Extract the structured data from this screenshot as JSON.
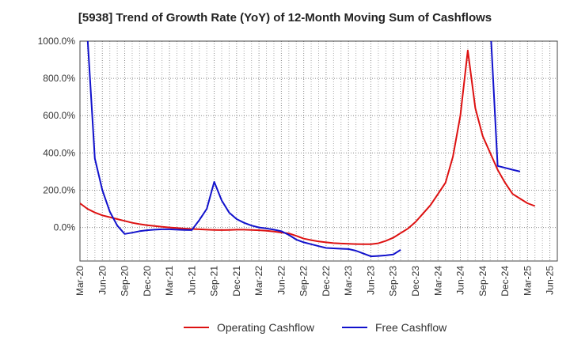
{
  "chart_data": {
    "type": "line",
    "title": "[5938]  Trend of Growth Rate (YoY) of 12-Month Moving Sum of Cashflows",
    "xlabel": "",
    "ylabel": "",
    "ylim": [
      -180,
      1000
    ],
    "yticks": [
      0,
      200,
      400,
      600,
      800,
      1000
    ],
    "ytick_labels": [
      "0.0%",
      "200.0%",
      "400.0%",
      "600.0%",
      "800.0%",
      "1000.0%"
    ],
    "xticks": [
      "Mar-20",
      "Jun-20",
      "Sep-20",
      "Dec-20",
      "Mar-21",
      "Jun-21",
      "Sep-21",
      "Dec-21",
      "Mar-22",
      "Jun-22",
      "Sep-22",
      "Dec-22",
      "Mar-23",
      "Jun-23",
      "Sep-23",
      "Dec-23",
      "Mar-24",
      "Jun-24",
      "Sep-24",
      "Dec-24",
      "Mar-25",
      "Jun-25"
    ],
    "x_start": "Mar-20",
    "x_months": 64,
    "grid": true,
    "legend_position": "bottom-center",
    "series": [
      {
        "name": "Operating Cashflow",
        "color": "#dd1111",
        "start_month": 0,
        "values": [
          130,
          100,
          80,
          65,
          55,
          45,
          35,
          25,
          18,
          12,
          8,
          4,
          0,
          -3,
          -6,
          -8,
          -10,
          -12,
          -13,
          -14,
          -13,
          -12,
          -12,
          -13,
          -15,
          -18,
          -22,
          -27,
          -32,
          -45,
          -60,
          -68,
          -75,
          -80,
          -84,
          -86,
          -88,
          -89,
          -90,
          -90,
          -85,
          -72,
          -55,
          -30,
          -5,
          30,
          75,
          120,
          180,
          240,
          380,
          600,
          950,
          640,
          490,
          400,
          310,
          240,
          180,
          155,
          130,
          115
        ]
      },
      {
        "name": "Free Cashflow",
        "color": "#1111cc",
        "start_month": 0,
        "values": [
          1100,
          1030,
          370,
          200,
          85,
          10,
          -35,
          -28,
          -20,
          -15,
          -12,
          -10,
          -10,
          -12,
          -13,
          -14,
          40,
          100,
          245,
          145,
          80,
          45,
          25,
          10,
          0,
          -5,
          -12,
          -20,
          -40,
          -65,
          -80,
          -90,
          -100,
          -110,
          -112,
          -114,
          -116,
          -125,
          -140,
          -155,
          -153,
          -150,
          -145,
          -120,
          null,
          null,
          null,
          null,
          null,
          null,
          null,
          null,
          null,
          null,
          null,
          null,
          null,
          null,
          null,
          null,
          null,
          null,
          null,
          null,
          null,
          null,
          null,
          null,
          null,
          null,
          null,
          null,
          null,
          null,
          null,
          null,
          null,
          null,
          null,
          null,
          null,
          null,
          null,
          null,
          null,
          null,
          null,
          null,
          null,
          null,
          null,
          null,
          null,
          null,
          null,
          null,
          null,
          null,
          null,
          null,
          null,
          null,
          null,
          null,
          null,
          null,
          null,
          null
        ]
      },
      {
        "name": "Free Cashflow",
        "color": "#1111cc",
        "start_month": 55,
        "values": [
          1100,
          330,
          320,
          310,
          300
        ]
      }
    ]
  }
}
